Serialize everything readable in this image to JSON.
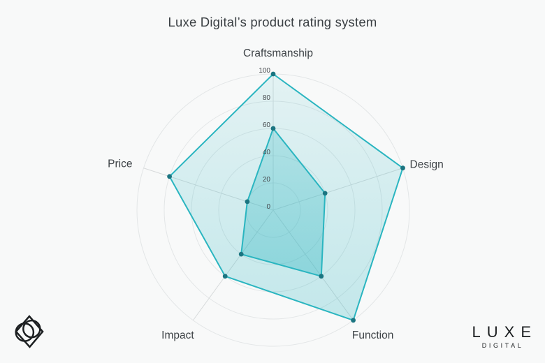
{
  "title": "Luxe Digital’s product rating system",
  "chart_data": {
    "type": "radar",
    "categories": [
      "Craftsmanship",
      "Design",
      "Function",
      "Impact",
      "Price"
    ],
    "series": [
      {
        "values": [
          100,
          100,
          100,
          60,
          80
        ]
      },
      {
        "values": [
          60,
          40,
          60,
          40,
          20
        ]
      }
    ],
    "radial_ticks": [
      0,
      20,
      40,
      60,
      80,
      100
    ],
    "rmax": 100,
    "grid": "circular-rings-with-spokes",
    "legend": "none",
    "start_axis": "top",
    "direction": "clockwise"
  },
  "colors": {
    "background": "#f8f9f9",
    "accent_teal": "#2ab5c0",
    "marker_teal": "#1b7581",
    "fill_outer_top": "rgba(42,181,192,0.10)",
    "fill_outer_bottom": "rgba(42,181,192,0.26)",
    "fill_inner_top": "rgba(42,181,192,0.24)",
    "fill_inner_bottom": "rgba(42,181,192,0.38)",
    "grid_ring": "#e3e6e7",
    "axis_spoke": "#d7dadb",
    "category_text": "#3d4246",
    "tick_text": "#45494d",
    "title_text": "#3a3f43",
    "logo_black": "#1c1f21"
  },
  "brand": {
    "wordmark_primary": "LUXE",
    "wordmark_secondary": "DIGITAL"
  },
  "icons": {
    "emblem": "diamond-with-overlapping-circles"
  }
}
